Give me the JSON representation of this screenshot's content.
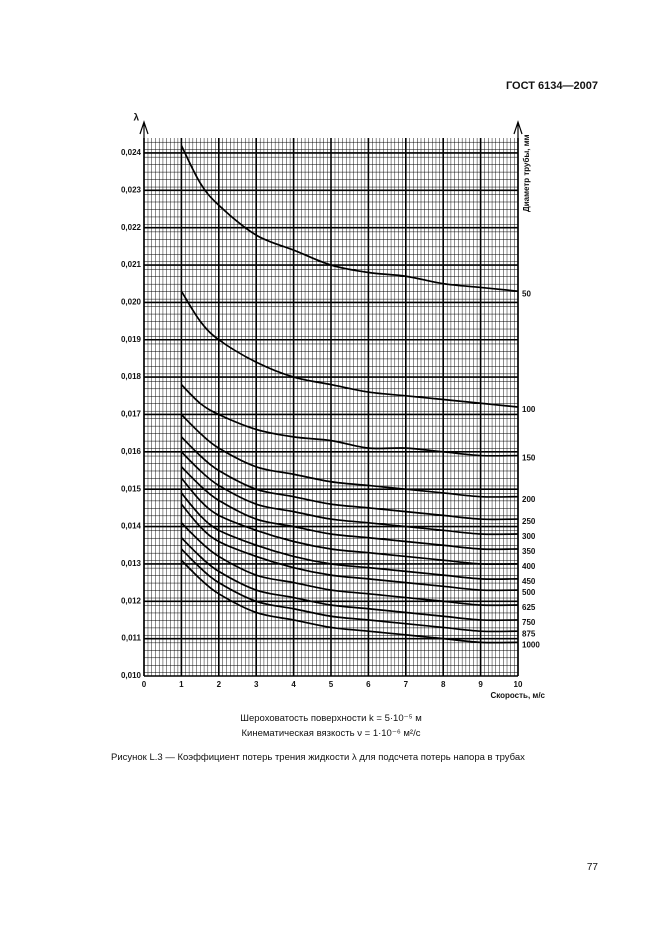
{
  "header": {
    "title": "ГОСТ 6134—2007"
  },
  "chart_data": {
    "type": "line",
    "y_label": "λ",
    "x_label": "Скорость, м/с",
    "right_label": "Диаметр трубы, мм",
    "x": [
      1,
      1.5,
      2,
      3,
      4,
      5,
      6,
      7,
      8,
      9,
      10
    ],
    "color": "#000000",
    "grid": true,
    "xlim": [
      0,
      10
    ],
    "ylim": [
      0.01,
      0.0244
    ],
    "xticks": [
      0,
      1,
      2,
      3,
      4,
      5,
      6,
      7,
      8,
      9,
      10
    ],
    "yticks": [
      {
        "value": 0.01,
        "label": "0,010"
      },
      {
        "value": 0.011,
        "label": "0,011"
      },
      {
        "value": 0.012,
        "label": "0,012"
      },
      {
        "value": 0.013,
        "label": "0,013"
      },
      {
        "value": 0.014,
        "label": "0,014"
      },
      {
        "value": 0.015,
        "label": "0,015"
      },
      {
        "value": 0.016,
        "label": "0,016"
      },
      {
        "value": 0.017,
        "label": "0,017"
      },
      {
        "value": 0.018,
        "label": "0,018"
      },
      {
        "value": 0.019,
        "label": "0,019"
      },
      {
        "value": 0.02,
        "label": "0,020"
      },
      {
        "value": 0.021,
        "label": "0,021"
      },
      {
        "value": 0.022,
        "label": "0,022"
      },
      {
        "value": 0.023,
        "label": "0,023"
      },
      {
        "value": 0.024,
        "label": "0,024"
      }
    ],
    "series": [
      {
        "name": "50",
        "values": [
          0.0242,
          0.0232,
          0.0226,
          0.0218,
          0.0214,
          0.021,
          0.0208,
          0.0207,
          0.0205,
          0.0204,
          0.0203
        ]
      },
      {
        "name": "100",
        "values": [
          0.0203,
          0.0195,
          0.019,
          0.0184,
          0.018,
          0.0178,
          0.0176,
          0.0175,
          0.0174,
          0.0173,
          0.0172
        ]
      },
      {
        "name": "150",
        "values": [
          0.0178,
          0.0173,
          0.017,
          0.0166,
          0.0164,
          0.0163,
          0.0161,
          0.0161,
          0.016,
          0.0159,
          0.0159
        ]
      },
      {
        "name": "200",
        "values": [
          0.017,
          0.0165,
          0.0161,
          0.0156,
          0.0154,
          0.0152,
          0.0151,
          0.015,
          0.0149,
          0.0148,
          0.0148
        ]
      },
      {
        "name": "250",
        "values": [
          0.0164,
          0.0159,
          0.0155,
          0.015,
          0.0148,
          0.0146,
          0.0145,
          0.0144,
          0.0143,
          0.0142,
          0.0142
        ]
      },
      {
        "name": "300",
        "values": [
          0.016,
          0.0155,
          0.0151,
          0.0146,
          0.0144,
          0.0142,
          0.0141,
          0.014,
          0.0139,
          0.0138,
          0.0138
        ]
      },
      {
        "name": "350",
        "values": [
          0.0156,
          0.0151,
          0.0147,
          0.0142,
          0.014,
          0.0138,
          0.0137,
          0.0136,
          0.0135,
          0.0134,
          0.0134
        ]
      },
      {
        "name": "400",
        "values": [
          0.0153,
          0.0147,
          0.0143,
          0.0139,
          0.0136,
          0.0134,
          0.0133,
          0.0132,
          0.0131,
          0.013,
          0.013
        ]
      },
      {
        "name": "450",
        "values": [
          0.0149,
          0.0143,
          0.0139,
          0.0135,
          0.0132,
          0.013,
          0.0129,
          0.0128,
          0.0127,
          0.0126,
          0.0126
        ]
      },
      {
        "name": "500",
        "values": [
          0.0146,
          0.014,
          0.0136,
          0.0132,
          0.0129,
          0.0127,
          0.0126,
          0.0125,
          0.0124,
          0.0123,
          0.0123
        ]
      },
      {
        "name": "625",
        "values": [
          0.0141,
          0.0136,
          0.0132,
          0.0127,
          0.0125,
          0.0123,
          0.0122,
          0.0121,
          0.012,
          0.0119,
          0.0119
        ]
      },
      {
        "name": "750",
        "values": [
          0.0137,
          0.0132,
          0.0128,
          0.0123,
          0.0121,
          0.0119,
          0.0118,
          0.0117,
          0.0116,
          0.0115,
          0.0115
        ]
      },
      {
        "name": "875",
        "values": [
          0.0134,
          0.0129,
          0.0125,
          0.012,
          0.0118,
          0.0116,
          0.0115,
          0.0114,
          0.0113,
          0.0112,
          0.0112
        ]
      },
      {
        "name": "1000",
        "values": [
          0.0131,
          0.0126,
          0.0122,
          0.0117,
          0.0115,
          0.0113,
          0.0112,
          0.0111,
          0.011,
          0.0109,
          0.0109
        ]
      }
    ]
  },
  "caption": {
    "roughness": "Шероховатость поверхности k = 5·10⁻⁵ м",
    "viscosity": "Кинематическая вязкость ν = 1·10⁻⁶ м²/с",
    "figure": "Рисунок L.3 — Коэффициент потерь трения жидкости λ для подсчета потерь напора в трубах"
  },
  "footer": {
    "page": "77"
  }
}
